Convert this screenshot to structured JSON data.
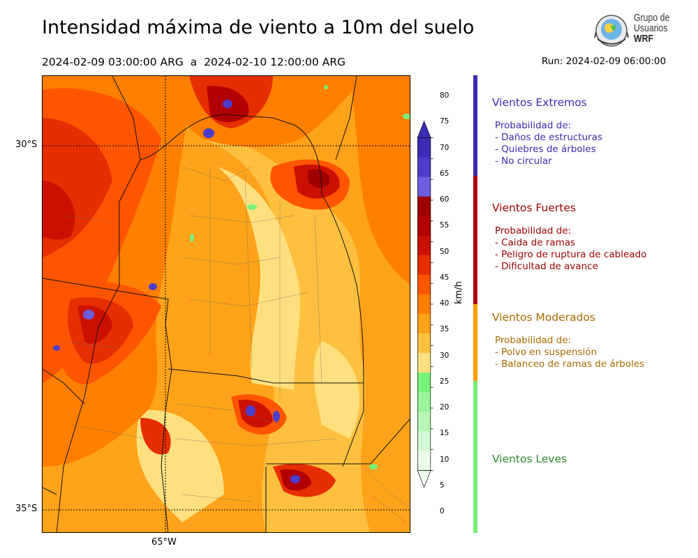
{
  "title": "Intensidad máxima de viento a 10m del suelo",
  "period": "2024-02-09 03:00:00 ARG  a  2024-02-10 12:00:00 ARG",
  "run": "Run: 2024-02-09 06:00:00",
  "logo": {
    "line1": "Grupo de",
    "line2": "Usuarios",
    "line3": "WRF"
  },
  "map": {
    "lat_labels": [
      "30°S",
      "35°S"
    ],
    "lon_labels": [
      "65°W"
    ],
    "field": "wind_speed_max_10m"
  },
  "colorbar": {
    "unit": "km/h",
    "ticks": [
      "80",
      "75",
      "70",
      "65",
      "60",
      "55",
      "50",
      "45",
      "40",
      "35",
      "30",
      "25",
      "20",
      "15",
      "10",
      "5",
      "0"
    ],
    "colors": [
      "#3b2db5",
      "#4b3ccc",
      "#6c5ee0",
      "#a00000",
      "#b20000",
      "#cc1000",
      "#e62e00",
      "#ff5500",
      "#ff7f00",
      "#ffa31a",
      "#ffc040",
      "#ffe080",
      "#79f279",
      "#99f599",
      "#b8f7b8",
      "#d4fad4",
      "#ecfdec"
    ]
  },
  "categories": [
    {
      "title": "Vientos Extremos",
      "color": "#3a2bb0",
      "heading": "Probabilidad de:",
      "items": [
        "- Daños de estructuras",
        "- Quiebres de árboles",
        "- No circular"
      ]
    },
    {
      "title": "Vientos Fuertes",
      "color": "#990000",
      "heading": "Probabilidad de:",
      "items": [
        "- Caida de ramas",
        "- Peligro de ruptura de cableado",
        "- Dificultad de avance"
      ]
    },
    {
      "title": "Vientos Moderados",
      "color": "#a66a00",
      "heading": "Probabilidad de:",
      "items": [
        "- Polvo en suspensión",
        "- Balanceo de ramas de árboles"
      ]
    },
    {
      "title": "Vientos Leves",
      "color": "#2e8b2e"
    }
  ],
  "bar_colors": [
    "#3a2bb0",
    "#aa0000",
    "#ffa000",
    "#77ee77"
  ]
}
